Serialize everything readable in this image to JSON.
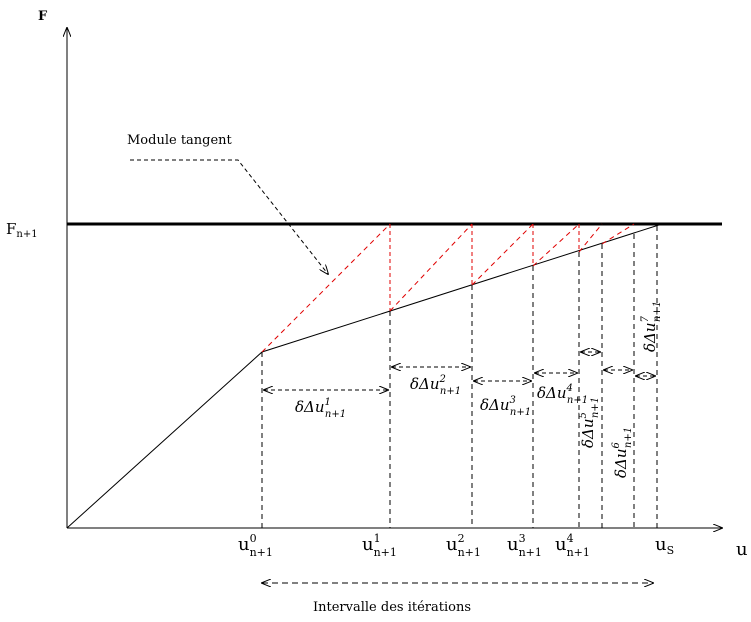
{
  "axes": {
    "y_label": "F",
    "x_label": "u",
    "force_level_label": "F",
    "force_level_sub": "n+1"
  },
  "annotations": {
    "tangent_module": "Module tangent",
    "iteration_interval": "Intervalle des itérations"
  },
  "x_ticks": [
    {
      "base": "u",
      "sup": "0",
      "sub": "n+1"
    },
    {
      "base": "u",
      "sup": "1",
      "sub": "n+1"
    },
    {
      "base": "u",
      "sup": "2",
      "sub": "n+1"
    },
    {
      "base": "u",
      "sup": "3",
      "sub": "n+1"
    },
    {
      "base": "u",
      "sup": "4",
      "sub": "n+1"
    },
    {
      "base": "u",
      "sup": "",
      "sub": "S"
    }
  ],
  "increments": [
    {
      "prefix": "δΔu",
      "sup": "1",
      "sub": "n+1"
    },
    {
      "prefix": "δΔu",
      "sup": "2",
      "sub": "n+1"
    },
    {
      "prefix": "δΔu",
      "sup": "3",
      "sub": "n+1"
    },
    {
      "prefix": "δΔu",
      "sup": "4",
      "sub": "n+1"
    },
    {
      "prefix": "δΔu",
      "sup": "5",
      "sub": "n+1"
    },
    {
      "prefix": "δΔu",
      "sup": "6",
      "sub": "n+1"
    },
    {
      "prefix": "δΔu",
      "sup": "7",
      "sub": "n+1"
    }
  ],
  "colors": {
    "axis": "#000000",
    "curve": "#000000",
    "tangent_lines": "#e00000",
    "dashed_guides": "#000000"
  }
}
